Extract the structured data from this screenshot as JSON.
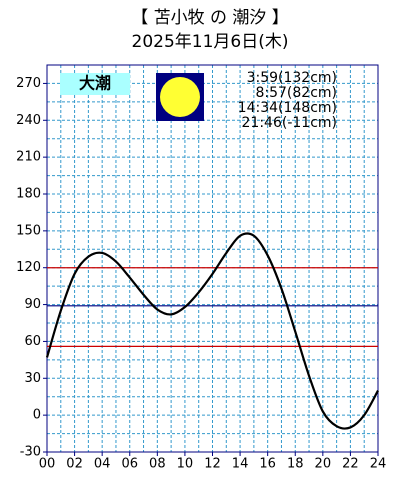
{
  "chart_data": {
    "type": "line",
    "title": "【 苫小牧 の 潮汐 】",
    "subtitle": "2025年11月6日(木)",
    "tide_type": "大潮",
    "tide_times": [
      "3:59(132cm)",
      "8:57(82cm)",
      "14:34(148cm)",
      "21:46(-11cm)"
    ],
    "x": [
      0,
      1,
      2,
      3,
      4,
      5,
      6,
      7,
      8,
      9,
      10,
      11,
      12,
      13,
      14,
      15,
      16,
      17,
      18,
      19,
      20,
      21,
      22,
      23,
      24
    ],
    "series": [
      {
        "color": "#000000",
        "values": [
          47,
          85,
          115,
          129,
          132,
          125,
          112,
          98,
          86,
          82,
          88,
          100,
          115,
          132,
          146,
          146,
          130,
          103,
          68,
          32,
          3,
          -9,
          -10,
          0,
          20
        ]
      }
    ],
    "xlim": [
      0,
      24
    ],
    "xticks": [
      {
        "value": 0,
        "label": "00"
      },
      {
        "value": 2,
        "label": "02"
      },
      {
        "value": 4,
        "label": "04"
      },
      {
        "value": 6,
        "label": "06"
      },
      {
        "value": 8,
        "label": "08"
      },
      {
        "value": 10,
        "label": "10"
      },
      {
        "value": 12,
        "label": "12"
      },
      {
        "value": 14,
        "label": "14"
      },
      {
        "value": 16,
        "label": "16"
      },
      {
        "value": 18,
        "label": "18"
      },
      {
        "value": 20,
        "label": "20"
      },
      {
        "value": 22,
        "label": "22"
      },
      {
        "value": 24,
        "label": "24"
      }
    ],
    "ylim": [
      -30,
      285
    ],
    "yticks": [
      -30,
      0,
      30,
      60,
      90,
      120,
      150,
      180,
      210,
      240,
      270
    ],
    "grid": true,
    "minor_grid": true,
    "grid_color": "#3399cc",
    "hlines": [
      {
        "value": 120,
        "color": "#cc0000"
      },
      {
        "value": 89,
        "color": "#000080"
      },
      {
        "value": 56,
        "color": "#cc0000"
      }
    ]
  }
}
